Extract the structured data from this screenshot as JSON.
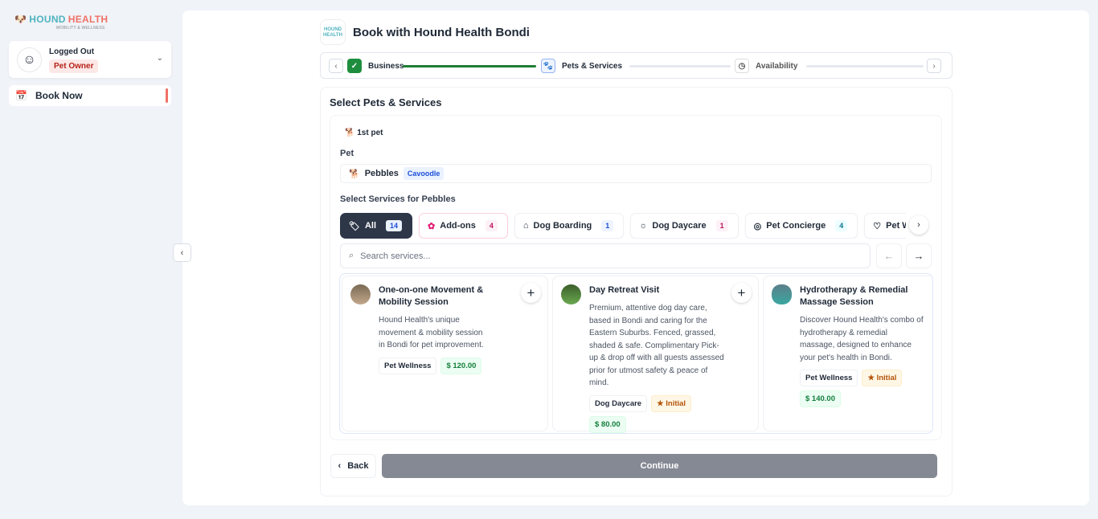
{
  "brand": {
    "part1": "HOUND",
    "part2": "HEALTH",
    "tagline": "MOBILITY & WELLNESS"
  },
  "sidebar": {
    "user_status": "Logged Out",
    "role": "Pet Owner",
    "nav": [
      {
        "label": "Book Now",
        "icon": "calendar-plus-icon",
        "active": true
      }
    ]
  },
  "header": {
    "title": "Book with Hound Health Bondi",
    "logo_text": "HOUND HEALTH"
  },
  "stepper": {
    "steps": [
      {
        "label": "Business",
        "state": "complete"
      },
      {
        "label": "Pets & Services",
        "state": "current"
      },
      {
        "label": "Availability",
        "state": "upcoming"
      }
    ]
  },
  "section": {
    "title": "Select Pets & Services",
    "pet_index": "1st pet",
    "pet_label": "Pet",
    "pet_name": "Pebbles",
    "pet_breed": "Cavoodle",
    "services_label": "Select Services for Pebbles"
  },
  "filters": [
    {
      "label": "All",
      "count": "14",
      "active": true
    },
    {
      "label": "Add-ons",
      "count": "4"
    },
    {
      "label": "Dog Boarding",
      "count": "1"
    },
    {
      "label": "Dog Daycare",
      "count": "1"
    },
    {
      "label": "Pet Concierge",
      "count": "4"
    },
    {
      "label": "Pet Wellness"
    }
  ],
  "search": {
    "placeholder": "Search services..."
  },
  "services": [
    {
      "title": "One-on-one Movement & Mobility Session",
      "description": "Hound Health's unique movement & mobility session in Bondi for pet improvement.",
      "category": "Pet Wellness",
      "price": "$ 120.00"
    },
    {
      "title": "Day Retreat Visit",
      "description": "Premium, attentive dog day care, based in Bondi and caring for the Eastern Suburbs. Fenced, grassed, shaded & safe. Complimentary Pick-up & drop off with all guests assessed prior for utmost safety & peace of mind.",
      "category": "Dog Daycare",
      "badge": "★ Initial",
      "price": "$ 80.00"
    },
    {
      "title": "Hydrotherapy & Remedial Massage Session",
      "description": "Discover Hound Health's combo of hydrotherapy & remedial massage, designed to enhance your pet's health in Bondi.",
      "category": "Pet Wellness",
      "badge": "★ Initial",
      "price": "$ 140.00"
    }
  ],
  "actions": {
    "back": "Back",
    "continue": "Continue"
  },
  "colors": {
    "accent": "#f07167",
    "brand_teal": "#4fb3bf",
    "progress": "#1e7e34",
    "active_chip": "#2d3748"
  }
}
